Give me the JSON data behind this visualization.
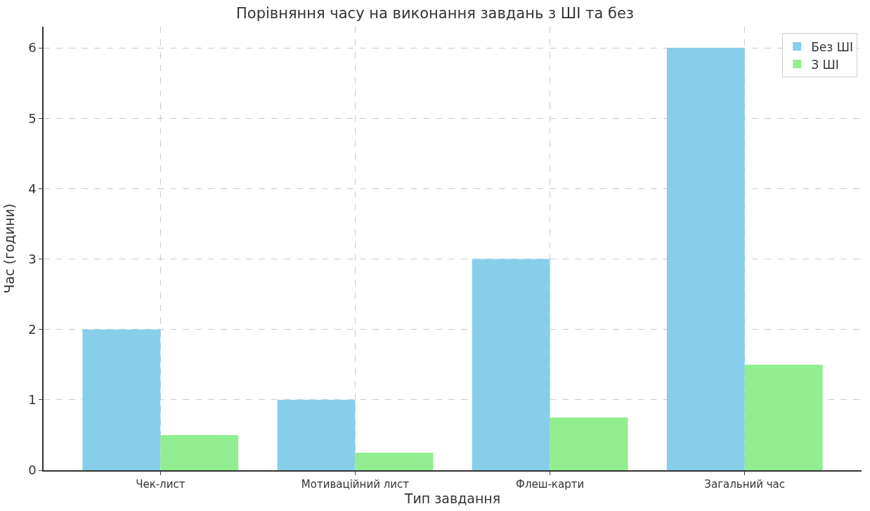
{
  "chart_data": {
    "type": "bar",
    "title": "Порівняння часу на виконання завдань з ШІ та без",
    "xlabel": "Тип завдання",
    "ylabel": "Час (години)",
    "categories": [
      "Чек-лист",
      "Мотиваційний лист",
      "Флеш-карти",
      "Загальний час"
    ],
    "series": [
      {
        "name": "Без ШІ",
        "color": "#87ceeb",
        "values": [
          2,
          1,
          3,
          6
        ]
      },
      {
        "name": "З ШІ",
        "color": "#90ee90",
        "values": [
          0.5,
          0.25,
          0.75,
          1.5
        ]
      }
    ],
    "ylim": [
      0,
      6.3
    ],
    "yticks": [
      0,
      1,
      2,
      3,
      4,
      5,
      6
    ],
    "grid": true,
    "legend": "top right"
  }
}
